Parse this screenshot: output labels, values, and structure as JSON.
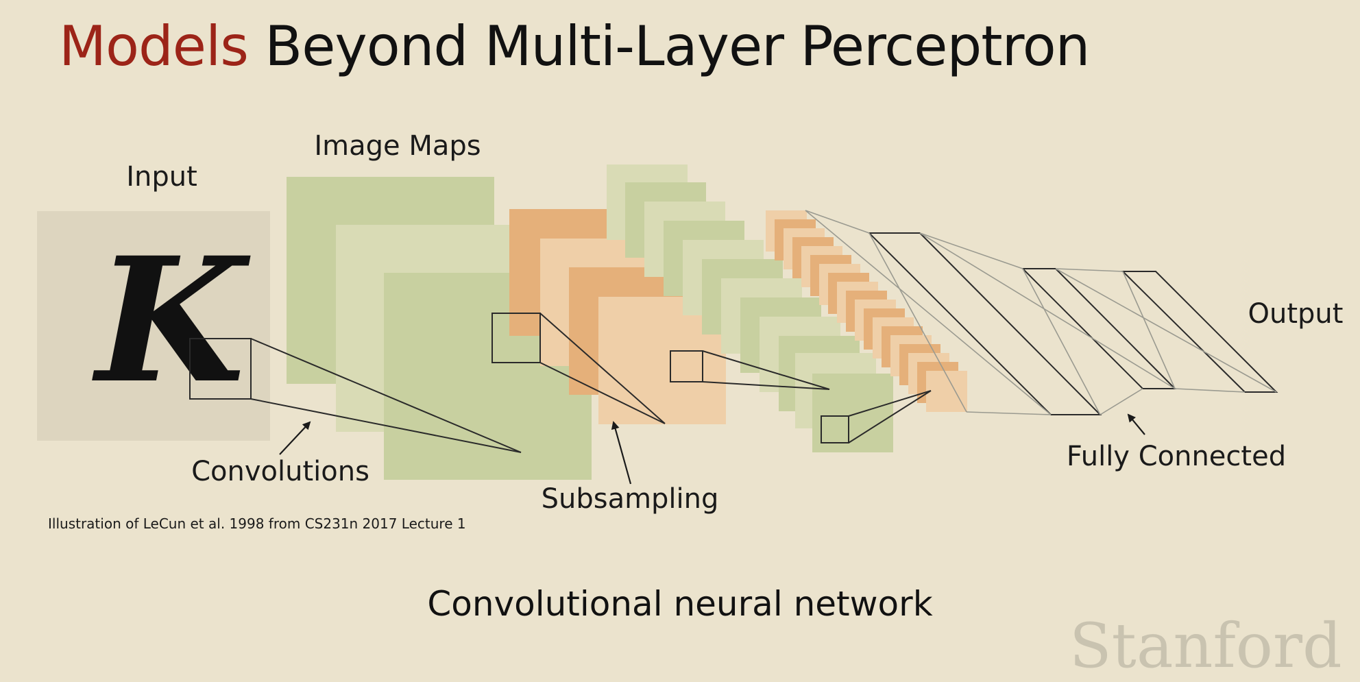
{
  "slide": {
    "title_accent": "Models",
    "title_rest": " Beyond Multi-Layer Perceptron",
    "credit": "Illustration of LeCun et al. 1998 from CS231n 2017 Lecture 1",
    "caption": "Convolutional neural network",
    "watermark": "Stanford"
  },
  "diagram": {
    "input_glyph": "K",
    "labels": {
      "input": "Input",
      "image_maps": "Image Maps",
      "output": "Output",
      "convolutions": "Convolutions",
      "subsampling": "Subsampling",
      "fully_connected": "Fully Connected"
    },
    "colors": {
      "background": "#ebe3cd",
      "input_panel": "#ddd5bf",
      "green_map": "#c8d0a0",
      "green_map_light": "#d9dbb5",
      "orange_map": "#e5b07a",
      "orange_map_light": "#efcfa8",
      "title_accent": "#9c2418"
    }
  }
}
